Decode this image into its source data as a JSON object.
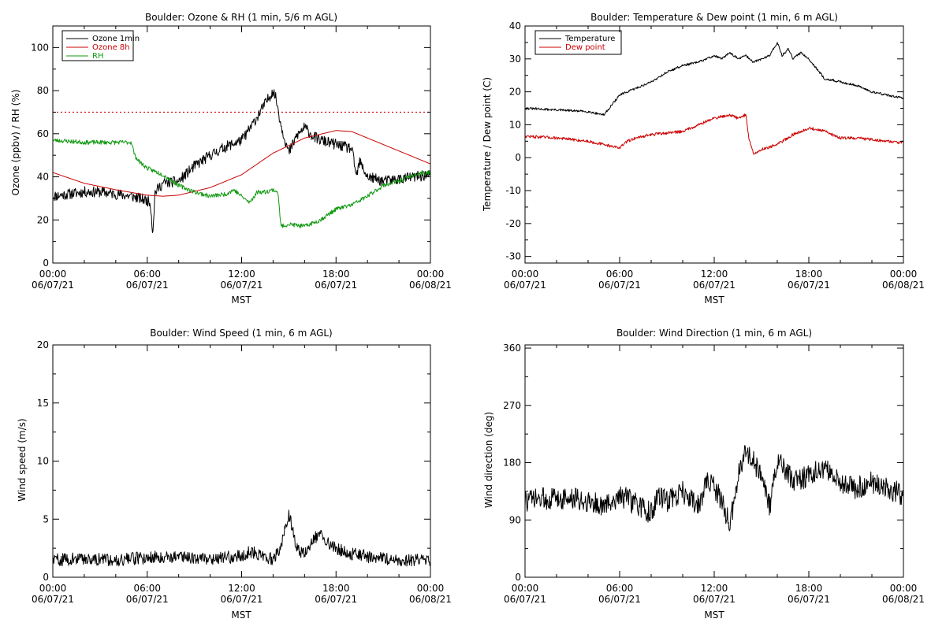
{
  "figure": {
    "background": "#ffffff",
    "axis_color": "#000000",
    "x_tick_labels": [
      {
        "time": "00:00",
        "date": "06/07/21"
      },
      {
        "time": "06:00",
        "date": "06/07/21"
      },
      {
        "time": "12:00",
        "date": "06/07/21"
      },
      {
        "time": "18:00",
        "date": "06/07/21"
      },
      {
        "time": "00:00",
        "date": "06/08/21"
      }
    ],
    "x_unit_label": "MST"
  },
  "chart_data": [
    {
      "type": "line",
      "title": "Boulder: Ozone & RH (1 min, 5/6 m AGL)",
      "xlabel": "MST",
      "ylabel": "Ozone (ppbv) / RH (%)",
      "xlim": [
        0,
        24
      ],
      "ylim": [
        0,
        110
      ],
      "yticks": [
        0,
        20,
        40,
        60,
        80,
        100
      ],
      "grid": false,
      "legend": "top-left",
      "legend_entries": [
        {
          "label": "Ozone 1min",
          "color": "#000000"
        },
        {
          "label": "Ozone 8h",
          "color": "#cc0000"
        },
        {
          "label": "RH",
          "color": "#119911"
        }
      ],
      "reference_lines": [
        {
          "y": 70,
          "color": "#cc0000",
          "style": "dotted"
        }
      ],
      "series": [
        {
          "name": "Ozone 1min",
          "color": "#000000",
          "noise": 2.5,
          "seed": 11,
          "x": [
            0,
            1,
            2,
            3,
            4,
            5,
            6,
            6.2,
            6.35,
            6.5,
            7,
            8,
            9,
            10,
            11,
            12,
            12.5,
            13,
            13.5,
            14,
            14.2,
            14.5,
            15,
            15.5,
            16,
            16.5,
            17,
            18,
            19,
            19.3,
            19.5,
            20,
            21,
            22,
            23,
            24
          ],
          "y": [
            31,
            32,
            33,
            33,
            32,
            31,
            29,
            28,
            14,
            33,
            37,
            38,
            45,
            50,
            54,
            57,
            62,
            68,
            74,
            80,
            76,
            64,
            51,
            59,
            63,
            59,
            57,
            55,
            53,
            40,
            47,
            40,
            38,
            39,
            40,
            41
          ]
        },
        {
          "name": "Ozone 8h",
          "color": "#cc0000",
          "noise": 0,
          "seed": 1,
          "x": [
            0,
            2,
            4,
            6,
            7,
            8,
            10,
            12,
            14,
            16,
            18,
            19,
            20,
            22,
            24
          ],
          "y": [
            42,
            37,
            34,
            31.5,
            31,
            31.5,
            35,
            41,
            51,
            58,
            61.5,
            61,
            58,
            52,
            46
          ]
        },
        {
          "name": "RH",
          "color": "#119911",
          "noise": 1.0,
          "seed": 23,
          "x": [
            0,
            2,
            4,
            5,
            5.2,
            5.5,
            6,
            7,
            8,
            9,
            10,
            11,
            11.5,
            12,
            12.5,
            13,
            13.5,
            14,
            14.3,
            14.5,
            15,
            16,
            17,
            18,
            19,
            20,
            21,
            22,
            23,
            24
          ],
          "y": [
            57,
            56,
            56,
            56,
            50,
            47,
            44,
            41,
            36,
            33,
            31,
            32,
            34,
            31,
            28,
            33,
            33,
            34,
            33,
            17,
            18,
            17,
            20,
            25,
            27,
            31,
            36,
            38,
            41,
            42
          ]
        }
      ]
    },
    {
      "type": "line",
      "title": "Boulder: Temperature & Dew point (1 min, 6 m AGL)",
      "xlabel": "MST",
      "ylabel": "Temperature / Dew point (C)",
      "xlim": [
        0,
        24
      ],
      "ylim": [
        -32,
        40
      ],
      "yticks": [
        -30,
        -20,
        -10,
        0,
        10,
        20,
        30,
        40
      ],
      "grid": false,
      "legend": "top-left",
      "legend_entries": [
        {
          "label": "Temperature",
          "color": "#000000"
        },
        {
          "label": "Dew point",
          "color": "#cc0000"
        }
      ],
      "series": [
        {
          "name": "Temperature",
          "color": "#000000",
          "noise": 0.35,
          "seed": 31,
          "x": [
            0,
            2,
            4,
            5,
            5.5,
            6,
            7,
            8,
            9,
            10,
            11,
            12,
            12.5,
            13,
            13.5,
            14,
            14.5,
            15,
            15.5,
            16,
            16.3,
            16.7,
            17,
            17.5,
            18,
            18.5,
            19,
            20,
            21,
            22,
            23,
            24
          ],
          "y": [
            15,
            14.5,
            14,
            13,
            16,
            19,
            21,
            23,
            26,
            28,
            29,
            31,
            30,
            32,
            30,
            31,
            29,
            30,
            31,
            35,
            31,
            33,
            30,
            32,
            30,
            27,
            24,
            23,
            22,
            20,
            19,
            18
          ]
        },
        {
          "name": "Dew point",
          "color": "#cc0000",
          "noise": 0.45,
          "seed": 47,
          "x": [
            0,
            2,
            4,
            5,
            6,
            6.5,
            7,
            8,
            9,
            10,
            11,
            12,
            13,
            13.5,
            14,
            14.2,
            14.5,
            15,
            16,
            17,
            18,
            19,
            20,
            21,
            22,
            23,
            24
          ],
          "y": [
            6.5,
            6,
            5,
            4,
            3,
            5,
            6,
            7,
            7.5,
            8,
            10,
            12,
            13,
            12,
            13,
            6,
            1,
            2.5,
            4,
            7,
            9,
            8,
            6,
            6,
            5.5,
            5,
            4.5
          ]
        }
      ]
    },
    {
      "type": "line",
      "title": "Boulder: Wind Speed (1 min, 6 m AGL)",
      "xlabel": "MST",
      "ylabel": "Wind speed (m/s)",
      "xlim": [
        0,
        24
      ],
      "ylim": [
        0,
        20
      ],
      "yticks": [
        0,
        5,
        10,
        15,
        20
      ],
      "grid": false,
      "legend": "none",
      "series": [
        {
          "color": "#000000",
          "noise": 0.55,
          "seed": 59,
          "x": [
            0,
            2,
            4,
            6,
            8,
            10,
            11,
            12,
            12.5,
            13,
            13.5,
            14,
            14.5,
            14.8,
            15,
            15.5,
            16,
            16.5,
            17,
            17.5,
            18,
            19,
            20,
            21,
            22,
            23,
            24
          ],
          "y": [
            1.5,
            1.6,
            1.5,
            1.7,
            1.8,
            1.6,
            1.7,
            1.8,
            2.2,
            2.0,
            1.8,
            1.5,
            2.5,
            4.5,
            5.5,
            2.5,
            2.0,
            3.0,
            4.0,
            3.0,
            2.5,
            2.0,
            1.8,
            1.6,
            1.5,
            1.5,
            1.3
          ]
        }
      ]
    },
    {
      "type": "line",
      "title": "Boulder: Wind Direction (1 min, 6 m AGL)",
      "xlabel": "MST",
      "ylabel": "Wind direction (deg)",
      "xlim": [
        0,
        24
      ],
      "ylim": [
        0,
        365
      ],
      "yticks": [
        0,
        90,
        180,
        270,
        360
      ],
      "grid": false,
      "legend": "none",
      "series": [
        {
          "color": "#000000",
          "noise": 18,
          "seed": 73,
          "x": [
            0,
            2,
            4,
            5,
            6,
            7,
            8,
            8.5,
            9,
            10,
            11,
            11.5,
            12,
            12.5,
            13,
            13.5,
            14,
            14.5,
            15,
            15.5,
            16,
            16.5,
            17,
            18,
            19,
            20,
            21,
            22,
            23,
            24
          ],
          "y": [
            120,
            125,
            120,
            110,
            130,
            115,
            100,
            130,
            120,
            135,
            110,
            150,
            140,
            120,
            80,
            160,
            200,
            180,
            160,
            110,
            180,
            170,
            150,
            160,
            170,
            150,
            140,
            150,
            140,
            130
          ]
        }
      ]
    }
  ]
}
